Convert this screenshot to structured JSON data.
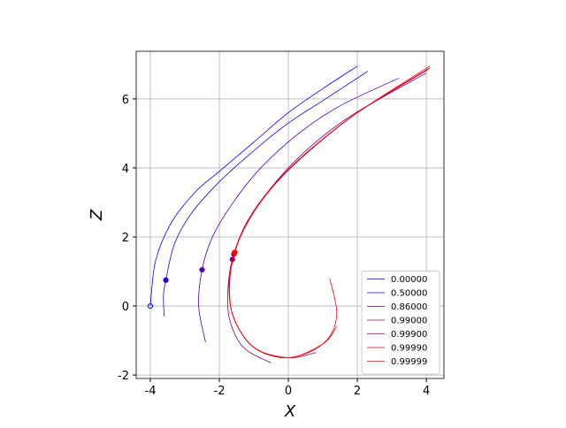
{
  "chart_data": {
    "type": "line",
    "xlabel": "X",
    "ylabel": "Z",
    "xlim": [
      -4.41,
      4.51
    ],
    "ylim": [
      -2.1,
      7.38
    ],
    "xticks": [
      -4,
      -2,
      0,
      2,
      4
    ],
    "yticks": [
      -2,
      0,
      2,
      4,
      6
    ],
    "grid": true,
    "legend": "lower right",
    "series": [
      {
        "name": "0.00000",
        "color": "#0000ff",
        "marker_x": -4.0,
        "marker_y": 0.0,
        "marker_hollow": true,
        "x": [
          -4.0,
          -3.85,
          -3.4,
          -2.7,
          -2.0,
          -1.0,
          0.0,
          1.0,
          2.0
        ],
        "values": [
          0.0,
          1.3,
          2.4,
          3.3,
          3.9,
          4.75,
          5.6,
          6.3,
          6.95
        ]
      },
      {
        "name": "0.50000",
        "color": "#2a00d4",
        "marker_x": -3.55,
        "marker_y": 0.75,
        "x": [
          -3.6,
          -3.62,
          -3.55,
          -3.3,
          -2.8,
          -2.0,
          -1.0,
          0.0,
          1.0,
          2.3
        ],
        "values": [
          -0.3,
          0.3,
          0.75,
          1.8,
          2.7,
          3.6,
          4.5,
          5.3,
          5.95,
          6.8
        ]
      },
      {
        "name": "0.86000",
        "color": "#5500aa",
        "marker_x": -2.5,
        "marker_y": 1.05,
        "x": [
          -2.4,
          -2.6,
          -2.5,
          -2.2,
          -1.6,
          -0.8,
          0.3,
          1.5,
          3.2
        ],
        "values": [
          -1.05,
          0.0,
          1.05,
          2.0,
          3.0,
          4.0,
          5.0,
          5.8,
          6.6
        ]
      },
      {
        "name": "0.99000",
        "color": "#7f0080",
        "marker_x": -1.62,
        "marker_y": 1.35,
        "x": [
          -0.5,
          -1.3,
          -1.7,
          -1.75,
          -1.62,
          -1.3,
          -0.6,
          0.4,
          1.8,
          4.0
        ],
        "values": [
          -1.65,
          -1.2,
          -0.4,
          0.5,
          1.35,
          2.2,
          3.3,
          4.4,
          5.5,
          6.75
        ]
      },
      {
        "name": "0.99900",
        "color": "#aa0055",
        "marker_x": -1.58,
        "marker_y": 1.5,
        "x": [
          0.8,
          0.0,
          -1.0,
          -1.6,
          -1.72,
          -1.58,
          -1.22,
          -0.52,
          0.48,
          2.0,
          4.05
        ],
        "values": [
          -1.35,
          -1.5,
          -1.2,
          -0.3,
          0.7,
          1.5,
          2.4,
          3.4,
          4.4,
          5.6,
          6.85
        ]
      },
      {
        "name": "0.99990",
        "color": "#d4002a",
        "marker_x": -1.56,
        "marker_y": 1.55,
        "x": [
          1.4,
          1.0,
          0.0,
          -1.0,
          -1.6,
          -1.7,
          -1.56,
          -1.2,
          -0.5,
          0.5,
          2.0,
          4.1
        ],
        "values": [
          -0.6,
          -1.1,
          -1.5,
          -1.2,
          -0.3,
          0.7,
          1.55,
          2.4,
          3.4,
          4.4,
          5.6,
          6.9
        ]
      },
      {
        "name": "0.99999",
        "color": "#ff0000",
        "marker_x": -1.55,
        "marker_y": 1.55,
        "x": [
          1.2,
          1.4,
          1.0,
          0.0,
          -1.0,
          -1.6,
          -1.7,
          -1.55,
          -1.2,
          -0.5,
          0.5,
          2.0,
          4.1
        ],
        "values": [
          0.8,
          -0.3,
          -1.1,
          -1.5,
          -1.2,
          -0.3,
          0.7,
          1.55,
          2.4,
          3.4,
          4.4,
          5.6,
          6.95
        ]
      }
    ]
  }
}
